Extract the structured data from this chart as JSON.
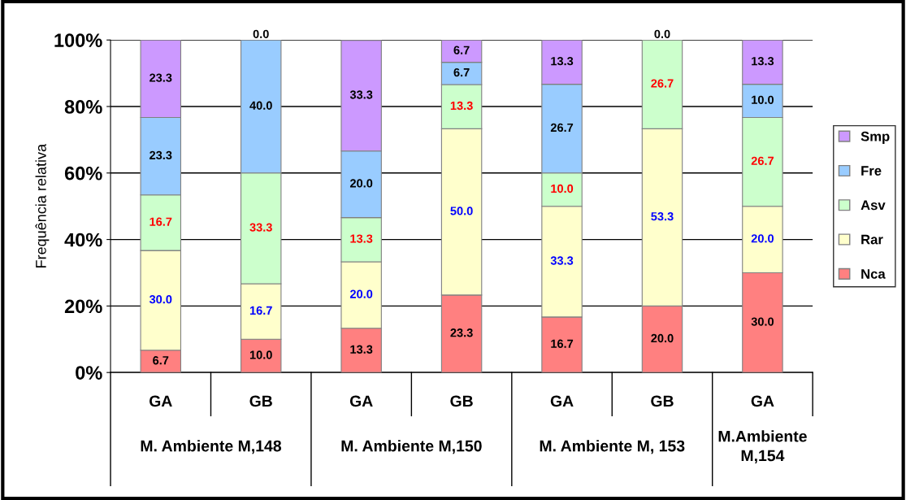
{
  "chart_data": {
    "type": "bar",
    "stacked": true,
    "ylabel": "Frequência relativa",
    "categories": [
      "GA",
      "GB",
      "GA",
      "GB",
      "GA",
      "GB",
      "GA"
    ],
    "annotations": [
      "M. Ambiente M,148",
      "M. Ambiente M,150",
      "M. Ambiente M, 153",
      "M.Ambiente M,154"
    ],
    "ylim": [
      0,
      100
    ],
    "yticks": [
      {
        "value": 0,
        "label": "0%"
      },
      {
        "value": 20,
        "label": "20%"
      },
      {
        "value": 40,
        "label": "40%"
      },
      {
        "value": 60,
        "label": "60%"
      },
      {
        "value": 80,
        "label": "80%"
      },
      {
        "value": 100,
        "label": "100%"
      }
    ],
    "grid": "y",
    "legend": "right",
    "series": [
      {
        "name": "Nca",
        "color": "#ff8080",
        "values": [
          6.7,
          10.0,
          13.3,
          23.3,
          16.7,
          20.0,
          30.0
        ],
        "value_labels": [
          "6.7",
          "10.0",
          "13.3",
          "23.3",
          "16.7",
          "20.0",
          "30.0"
        ]
      },
      {
        "name": "Rar",
        "color": "#ffffcc",
        "values": [
          30.0,
          16.7,
          20.0,
          50.0,
          33.3,
          53.3,
          20.0
        ],
        "value_labels": [
          "30.0",
          "16.7",
          "20.0",
          "50.0",
          "33.3",
          "53.3",
          "20.0"
        ]
      },
      {
        "name": "Asv",
        "color": "#ccffcc",
        "values": [
          16.7,
          33.3,
          13.3,
          13.3,
          10.0,
          26.7,
          26.7
        ],
        "value_labels": [
          "16.7",
          "33.3",
          "13.3",
          "13.3",
          "10.0",
          "26.7",
          "26.7"
        ]
      },
      {
        "name": "Fre",
        "color": "#99ccff",
        "values": [
          23.3,
          40.0,
          20.0,
          6.7,
          26.7,
          0.0,
          10.0
        ],
        "value_labels": [
          "23.3",
          "40.0",
          "20.0",
          "6.7",
          "26.7",
          null,
          "10.0"
        ]
      },
      {
        "name": "Smp",
        "color": "#cc99ff",
        "values": [
          23.3,
          0.0,
          33.3,
          6.7,
          13.3,
          0.0,
          13.3
        ],
        "value_labels": [
          "23.3",
          "0.0",
          "33.3",
          "6.7",
          "13.3",
          "0.0",
          "13.3"
        ]
      }
    ]
  }
}
